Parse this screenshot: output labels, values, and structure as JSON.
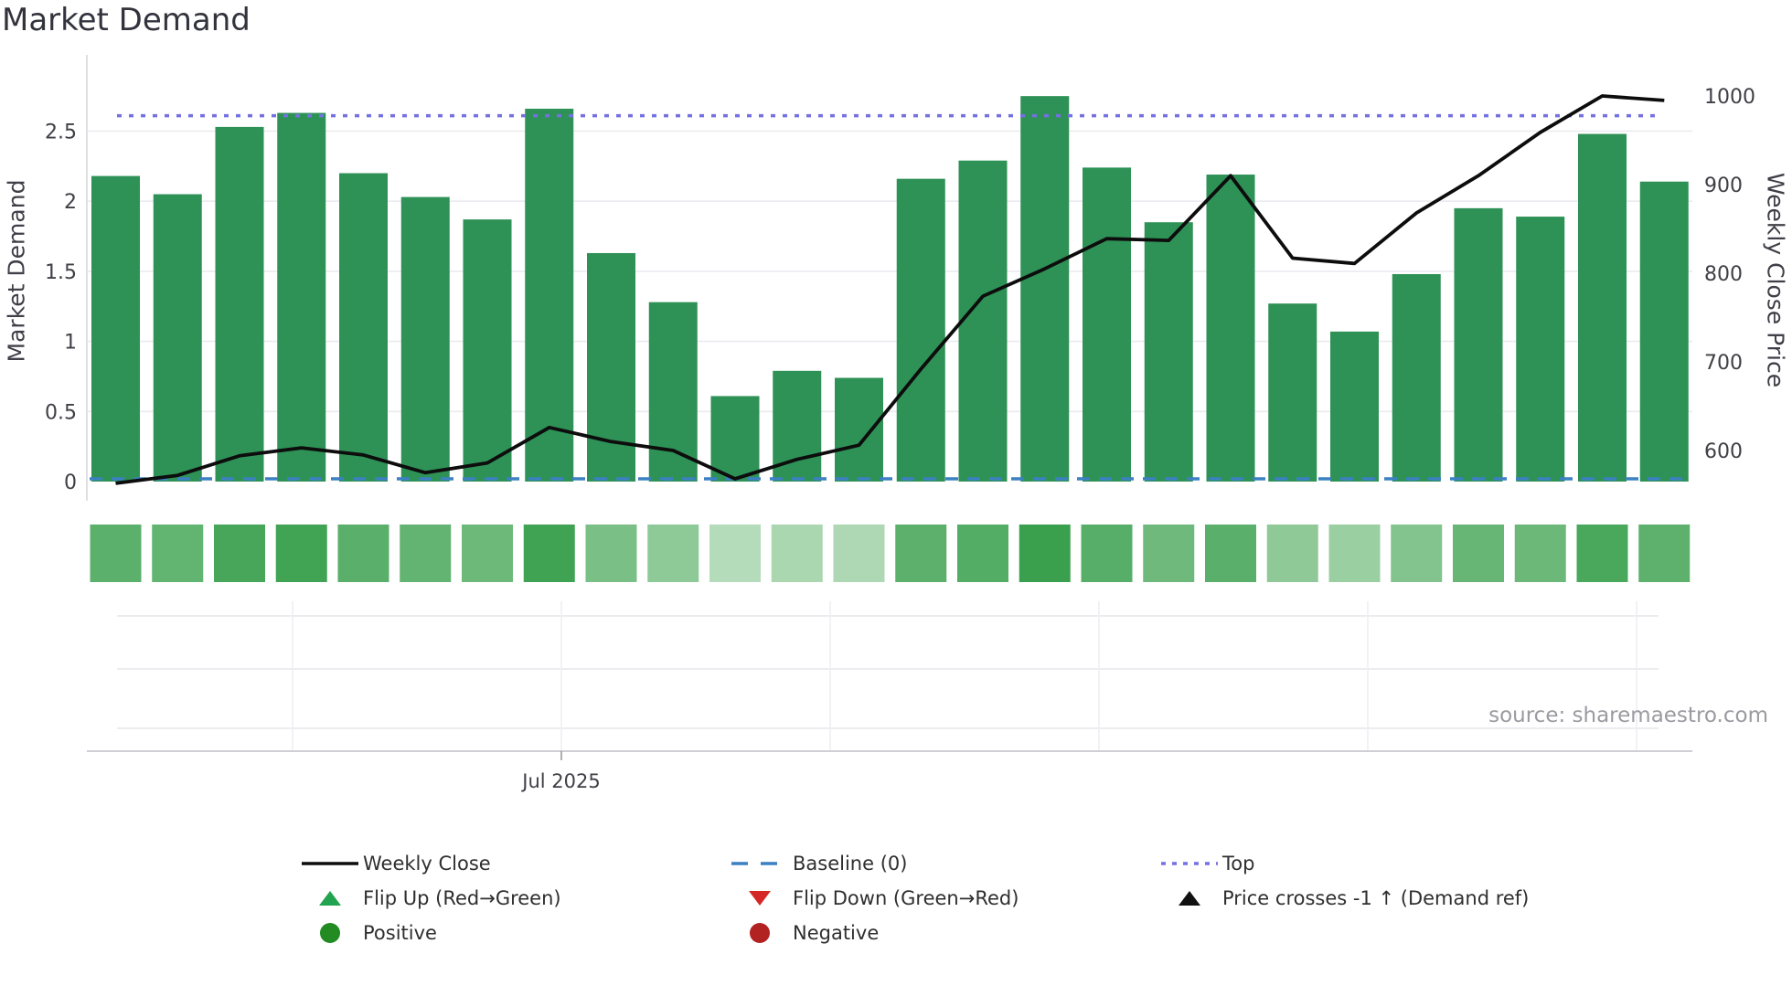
{
  "title": "Market Demand",
  "axes": {
    "left_title": "Market Demand",
    "right_title": "Weekly Close Price",
    "left_ticks": [
      "0",
      "0.5",
      "1",
      "1.5",
      "2",
      "2.5"
    ],
    "left_tick_values": [
      0,
      0.5,
      1,
      1.5,
      2,
      2.5
    ],
    "right_ticks": [
      "600",
      "700",
      "800",
      "900",
      "1000"
    ],
    "right_tick_values": [
      600,
      700,
      800,
      900,
      1000
    ],
    "x_tick_label": "Jul 2025"
  },
  "source_text": "source: sharemaestro.com",
  "chart_data": {
    "type": "bar",
    "x": [
      1,
      2,
      3,
      4,
      5,
      6,
      7,
      8,
      9,
      10,
      11,
      12,
      13,
      14,
      15,
      16,
      17,
      18,
      19,
      20,
      21,
      22,
      23,
      24,
      25,
      26
    ],
    "series": [
      {
        "name": "Market Demand",
        "type": "bar",
        "axis": "left",
        "values": [
          2.18,
          2.05,
          2.53,
          2.63,
          2.2,
          2.03,
          1.87,
          2.66,
          1.63,
          1.28,
          0.61,
          0.79,
          0.74,
          2.16,
          2.29,
          2.75,
          2.24,
          1.85,
          2.19,
          1.27,
          1.07,
          1.48,
          1.95,
          1.89,
          2.48,
          2.14
        ]
      },
      {
        "name": "Weekly Close",
        "type": "line",
        "axis": "right",
        "values": [
          563,
          572,
          594,
          603,
          595,
          575,
          586,
          626,
          610,
          600,
          568,
          590,
          606,
          692,
          774,
          805,
          839,
          837,
          910,
          817,
          811,
          868,
          910,
          959,
          1000,
          995
        ]
      }
    ],
    "heatmap": {
      "values": [
        2.18,
        2.05,
        2.53,
        2.63,
        2.2,
        2.03,
        1.87,
        2.66,
        1.63,
        1.28,
        0.61,
        0.79,
        0.74,
        2.16,
        2.29,
        2.75,
        2.24,
        1.85,
        2.19,
        1.27,
        1.07,
        1.48,
        1.95,
        1.89,
        2.48,
        2.14
      ],
      "colors": [
        "#5bb06b",
        "#62b471",
        "#47a659",
        "#41a354",
        "#5aaf6a",
        "#63b472",
        "#6cb97a",
        "#3fa353",
        "#7abf86",
        "#8ec998",
        "#b5dcba",
        "#aad7b0",
        "#add8b3",
        "#5cb06c",
        "#54ad65",
        "#3aa04e",
        "#57ae68",
        "#6eb97b",
        "#5ab06a",
        "#8fc998",
        "#9acfa2",
        "#83c38e",
        "#68b676",
        "#6bb879",
        "#4aa85c",
        "#5db16d"
      ]
    },
    "reference_lines": {
      "baseline": 0,
      "top": 2.61
    },
    "title": "Market Demand",
    "xlabel": "Jul 2025",
    "ylabel_left": "Market Demand",
    "ylabel_right": "Weekly Close Price",
    "left_ylim": [
      0,
      3.05
    ],
    "right_ylim": [
      565,
      1035
    ],
    "grid": true,
    "legend_position": "bottom"
  },
  "colors": {
    "bar": "#2e9156",
    "line": "#0d0d0d",
    "top_line": "#7671e3",
    "baseline": "#3c80c2",
    "flip_up": "#22a34f",
    "flip_down": "#d62728",
    "positive": "#228b22",
    "negative": "#b22222",
    "grid": "#ebebf0",
    "axis_line": "#d8d8de",
    "tick_text": "#3f3f46"
  },
  "legend": {
    "columns": [
      {
        "items": [
          {
            "label": "Weekly Close",
            "marker": "black-line"
          },
          {
            "label": "Flip Up (Red→Green)",
            "marker": "green-up-triangle"
          },
          {
            "label": "Positive",
            "marker": "green-circle"
          }
        ]
      },
      {
        "items": [
          {
            "label": "Baseline (0)",
            "marker": "blue-dashed-line"
          },
          {
            "label": "Flip Down (Green→Red)",
            "marker": "red-down-triangle"
          },
          {
            "label": "Negative",
            "marker": "red-circle"
          }
        ]
      },
      {
        "items": [
          {
            "label": "Top",
            "marker": "purple-dotted-line"
          },
          {
            "label": "Price crosses -1 ↑ (Demand ref)",
            "marker": "black-up-triangle"
          }
        ]
      }
    ]
  }
}
